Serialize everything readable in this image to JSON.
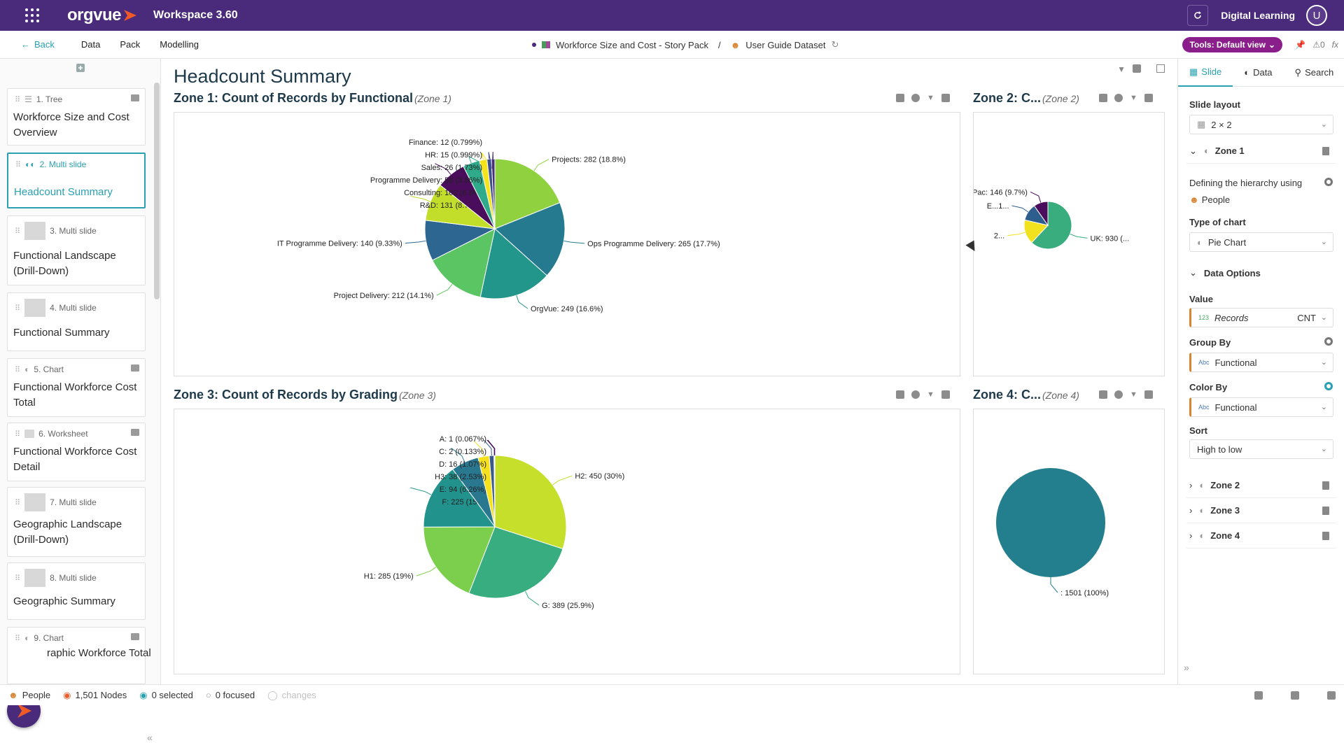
{
  "topbar": {
    "brand": "orgvue",
    "workspace": "Workspace  3.60",
    "org_name": "Digital Learning",
    "avatar_initial": "U",
    "brand_color": "#4a2a7a",
    "accent_orange": "#f05a28"
  },
  "nav": {
    "back": "Back",
    "links": [
      "Data",
      "Pack",
      "Modelling"
    ],
    "pack_name": "Workforce Size and Cost - Story Pack",
    "separator": "/",
    "dataset": "User Guide Dataset",
    "tools_label": "Tools: Default view",
    "alerts": "0",
    "fx": "fx"
  },
  "sidebar": {
    "slides": [
      {
        "type": "1. Tree",
        "title": "Workforce Size and Cost Overview"
      },
      {
        "type": "2. Multi slide",
        "title": "Headcount Summary"
      },
      {
        "type": "3. Multi slide",
        "title": "Functional Landscape (Drill-Down)"
      },
      {
        "type": "4. Multi slide",
        "title": "Functional Summary"
      },
      {
        "type": "5. Chart",
        "title": "Functional Workforce Cost Total"
      },
      {
        "type": "6. Worksheet",
        "title": "Functional Workforce Cost Detail"
      },
      {
        "type": "7. Multi slide",
        "title": "Geographic Landscape (Drill-Down)"
      },
      {
        "type": "8. Multi slide",
        "title": "Geographic Summary"
      },
      {
        "type": "9. Chart",
        "title": "raphic Workforce Total"
      }
    ]
  },
  "main": {
    "page_title": "Headcount Summary",
    "zones": [
      {
        "title": "Zone 1: Count of Records by Functional",
        "sub": "(Zone 1)"
      },
      {
        "title": "Zone 2: C...",
        "sub": "(Zone 2)"
      },
      {
        "title": "Zone 3: Count of Records by Grading",
        "sub": "(Zone 3)"
      },
      {
        "title": "Zone 4: C...",
        "sub": "(Zone 4)"
      }
    ]
  },
  "chart_data": [
    {
      "type": "pie",
      "title": "Zone 1: Count of Records by Functional",
      "slices": [
        {
          "name": "Projects",
          "value": 282,
          "pct": "18.8%",
          "color": "#8fd13f"
        },
        {
          "name": "Ops Programme Delivery",
          "value": 265,
          "pct": "17.7%",
          "color": "#267a8f"
        },
        {
          "name": "OrgVue",
          "value": 249,
          "pct": "16.6%",
          "color": "#22968a"
        },
        {
          "name": "Project Delivery",
          "value": 212,
          "pct": "14.1%",
          "color": "#5cc563"
        },
        {
          "name": "IT Programme Delivery",
          "value": 140,
          "pct": "9.33%",
          "color": "#2d6690"
        },
        {
          "name": "R&D",
          "value": 131,
          "pct": "8.73%",
          "color": "#c3de2a"
        },
        {
          "name": "Consulting",
          "value": 102,
          "pct": "6.8%",
          "color": "#4a0d5c"
        },
        {
          "name": "Programme Delivery",
          "value": 58,
          "pct": "3.86%",
          "color": "#2faa8a"
        },
        {
          "name": "Sales",
          "value": 26,
          "pct": "1.73%",
          "color": "#f5e31c"
        },
        {
          "name": "HR",
          "value": 15,
          "pct": "0.999%",
          "color": "#3b4f8a"
        },
        {
          "name": "Finance",
          "value": 12,
          "pct": "0.799%",
          "color": "#472d7b"
        }
      ]
    },
    {
      "type": "pie",
      "title": "Zone 2: C...",
      "slices": [
        {
          "name": "UK",
          "label": "UK: 930 (...",
          "value": 930,
          "color": "#3aad7e"
        },
        {
          "name": "2...",
          "label": "2...",
          "value": 250,
          "color": "#f2e21e"
        },
        {
          "name": "E...",
          "label": "E...1...",
          "value": 175,
          "color": "#2d5e8e"
        },
        {
          "name": "Asia Pac",
          "label": "Asia Pac: 146 (9.7%)",
          "value": 146,
          "color": "#4a0d5c"
        }
      ]
    },
    {
      "type": "pie",
      "title": "Zone 3: Count of Records by Grading",
      "slices": [
        {
          "name": "H2",
          "value": 450,
          "pct": "30%",
          "color": "#c5df2a"
        },
        {
          "name": "G",
          "value": 389,
          "pct": "25.9%",
          "color": "#38ad80"
        },
        {
          "name": "H1",
          "value": 285,
          "pct": "19%",
          "color": "#7ccf4c"
        },
        {
          "name": "F",
          "value": 225,
          "pct": "15%",
          "color": "#22928d"
        },
        {
          "name": "E",
          "value": 94,
          "pct": "6.26%",
          "color": "#2a7890"
        },
        {
          "name": "H3",
          "value": 38,
          "pct": "2.53%",
          "color": "#f6e11d"
        },
        {
          "name": "D",
          "value": 16,
          "pct": "1.07%",
          "color": "#3a5a8c"
        },
        {
          "name": "C",
          "value": 2,
          "pct": "0.133%",
          "color": "#482677"
        },
        {
          "name": "A",
          "value": 1,
          "pct": "0.067%",
          "color": "#440154"
        }
      ]
    },
    {
      "type": "pie",
      "title": "Zone 4: C...",
      "slices": [
        {
          "name": "",
          "label": ": 1501 (100%)",
          "value": 1501,
          "color": "#237e8d"
        }
      ]
    }
  ],
  "rpanel": {
    "tabs": [
      "Slide",
      "Data",
      "Search"
    ],
    "slide_layout_label": "Slide layout",
    "slide_layout": "2 × 2",
    "zone1": "Zone 1",
    "hierarchy_label": "Defining the hierarchy using",
    "hierarchy_value": "People",
    "chart_type_label": "Type of chart",
    "chart_type": "Pie Chart",
    "data_options": "Data Options",
    "value_label": "Value",
    "value_field": "Records",
    "value_agg": "CNT",
    "value_badge": "123",
    "group_by_label": "Group By",
    "group_by": "Functional",
    "color_by_label": "Color By",
    "color_by": "Functional",
    "abc_badge": "Abc",
    "sort_label": "Sort",
    "sort": "High to low",
    "other_zones": [
      "Zone 2",
      "Zone 3",
      "Zone 4"
    ]
  },
  "status": {
    "people": "People",
    "nodes": "1,501 Nodes",
    "selected": "0 selected",
    "focused": "0 focused",
    "changes": "changes"
  }
}
